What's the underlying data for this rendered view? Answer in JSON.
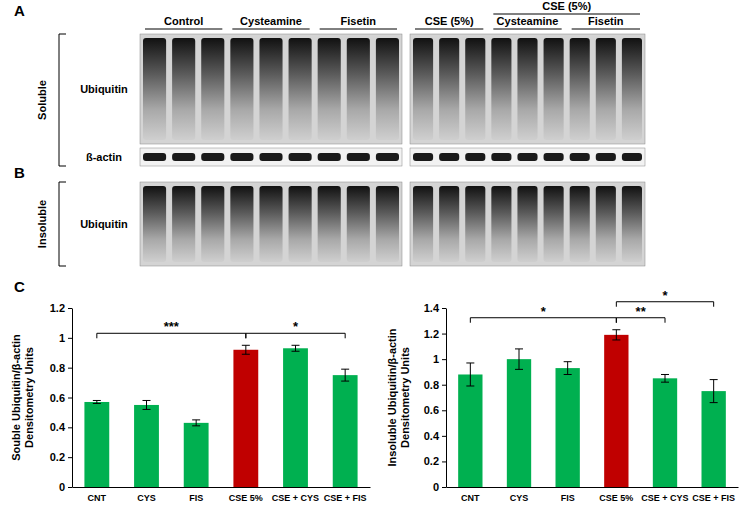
{
  "figure": {
    "panel_labels": [
      "A",
      "B",
      "C"
    ]
  },
  "blots": {
    "header_top": "CSE (5%)",
    "groups_left": [
      "Control",
      "Cysteamine",
      "Fisetin"
    ],
    "groups_right": [
      "CSE (5%)",
      "Cysteamine",
      "Fisetin"
    ],
    "soluble": {
      "fraction": "Soluble",
      "proteins": [
        "Ubiquitin",
        "ß-actin"
      ]
    },
    "insoluble": {
      "fraction": "Insoluble",
      "proteins": [
        "Ubiquitin"
      ]
    }
  },
  "chart_data": [
    {
      "type": "bar",
      "ylabel": "Souble Ubiquitin/β-actin\nDensitometry Units",
      "categories": [
        "CNT",
        "CYS",
        "FIS",
        "CSE 5%",
        "CSE + CYS",
        "CSE + FIS"
      ],
      "values": [
        0.57,
        0.55,
        0.43,
        0.92,
        0.93,
        0.75
      ],
      "errors": [
        0.01,
        0.03,
        0.02,
        0.03,
        0.02,
        0.04
      ],
      "colors": [
        "#00b050",
        "#00b050",
        "#00b050",
        "#c00000",
        "#00b050",
        "#00b050"
      ],
      "ylim": [
        0,
        1.2
      ],
      "yticks": [
        0,
        0.2,
        0.4,
        0.6,
        0.8,
        1,
        1.2
      ],
      "annotations": [
        {
          "text": "***",
          "between": [
            "CNT",
            "CSE 5%"
          ]
        },
        {
          "text": "*",
          "between": [
            "CSE 5%",
            "CSE + FIS"
          ]
        }
      ]
    },
    {
      "type": "bar",
      "ylabel": "Insoluble Ubiquitin/β-actin\nDensitometry Units",
      "categories": [
        "CNT",
        "CYS",
        "FIS",
        "CSE 5%",
        "CSE + CYS",
        "CSE + FIS"
      ],
      "values": [
        0.88,
        1.0,
        0.93,
        1.19,
        0.85,
        0.75
      ],
      "errors": [
        0.09,
        0.08,
        0.05,
        0.04,
        0.03,
        0.09
      ],
      "colors": [
        "#00b050",
        "#00b050",
        "#00b050",
        "#c00000",
        "#00b050",
        "#00b050"
      ],
      "ylim": [
        0,
        1.4
      ],
      "yticks": [
        0,
        0.2,
        0.4,
        0.6,
        0.8,
        1,
        1.2,
        1.4
      ],
      "annotations": [
        {
          "text": "*",
          "between": [
            "CNT",
            "CSE 5%"
          ]
        },
        {
          "text": "**",
          "between": [
            "CSE 5%",
            "CSE + CYS"
          ]
        },
        {
          "text": "*",
          "between": [
            "CSE 5%",
            "CSE + FIS"
          ]
        }
      ]
    }
  ]
}
